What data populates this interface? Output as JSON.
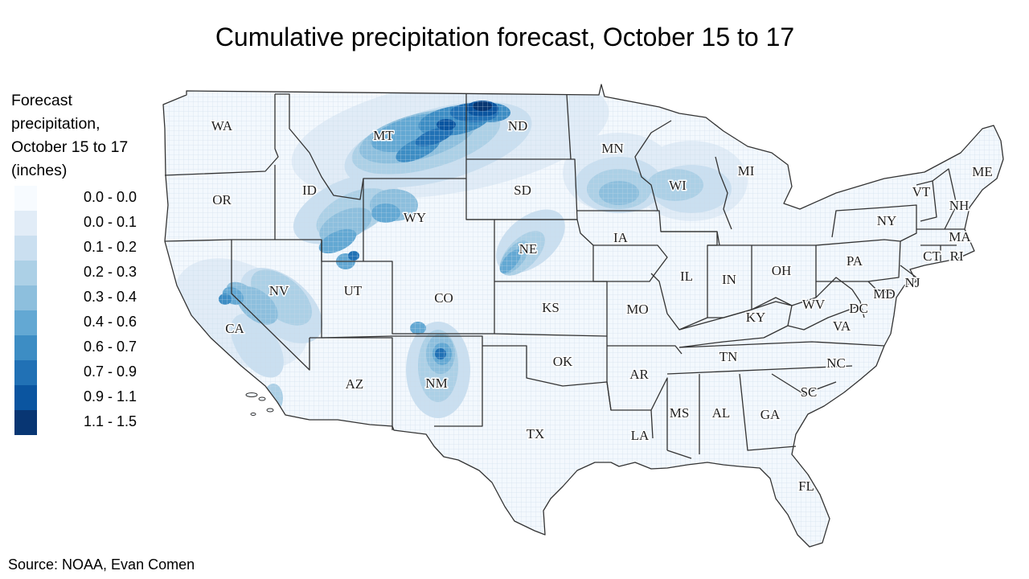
{
  "title": "Cumulative precipitation forecast, October 15 to 17",
  "legend": {
    "title": "Forecast precipitation, October 15 to 17 (inches)",
    "items": [
      {
        "label": "0.0 - 0.0",
        "color": "#f7fbff"
      },
      {
        "label": "0.0 - 0.1",
        "color": "#e1ecf7"
      },
      {
        "label": "0.1 - 0.2",
        "color": "#cadff0"
      },
      {
        "label": "0.2 - 0.3",
        "color": "#acd0e6"
      },
      {
        "label": "0.3 - 0.4",
        "color": "#8dbfdd"
      },
      {
        "label": "0.4 - 0.6",
        "color": "#63a8d3"
      },
      {
        "label": "0.6 - 0.7",
        "color": "#3d8dc4"
      },
      {
        "label": "0.7 - 0.9",
        "color": "#2171b5"
      },
      {
        "label": "0.9 - 1.1",
        "color": "#0b55a0"
      },
      {
        "label": "1.1 - 1.5",
        "color": "#083673"
      }
    ]
  },
  "states": [
    "WA",
    "OR",
    "CA",
    "ID",
    "NV",
    "MT",
    "WY",
    "UT",
    "AZ",
    "CO",
    "NM",
    "ND",
    "SD",
    "NE",
    "KS",
    "OK",
    "TX",
    "MN",
    "IA",
    "MO",
    "AR",
    "LA",
    "WI",
    "IL",
    "MI",
    "IN",
    "OH",
    "KY",
    "TN",
    "MS",
    "AL",
    "GA",
    "FL",
    "SC",
    "NC",
    "VA",
    "WV",
    "PA",
    "NY",
    "VT",
    "NH",
    "ME",
    "MA",
    "CT",
    "RI",
    "NJ",
    "MD",
    "DC"
  ],
  "source": "Source: NOAA, Evan Comen"
}
